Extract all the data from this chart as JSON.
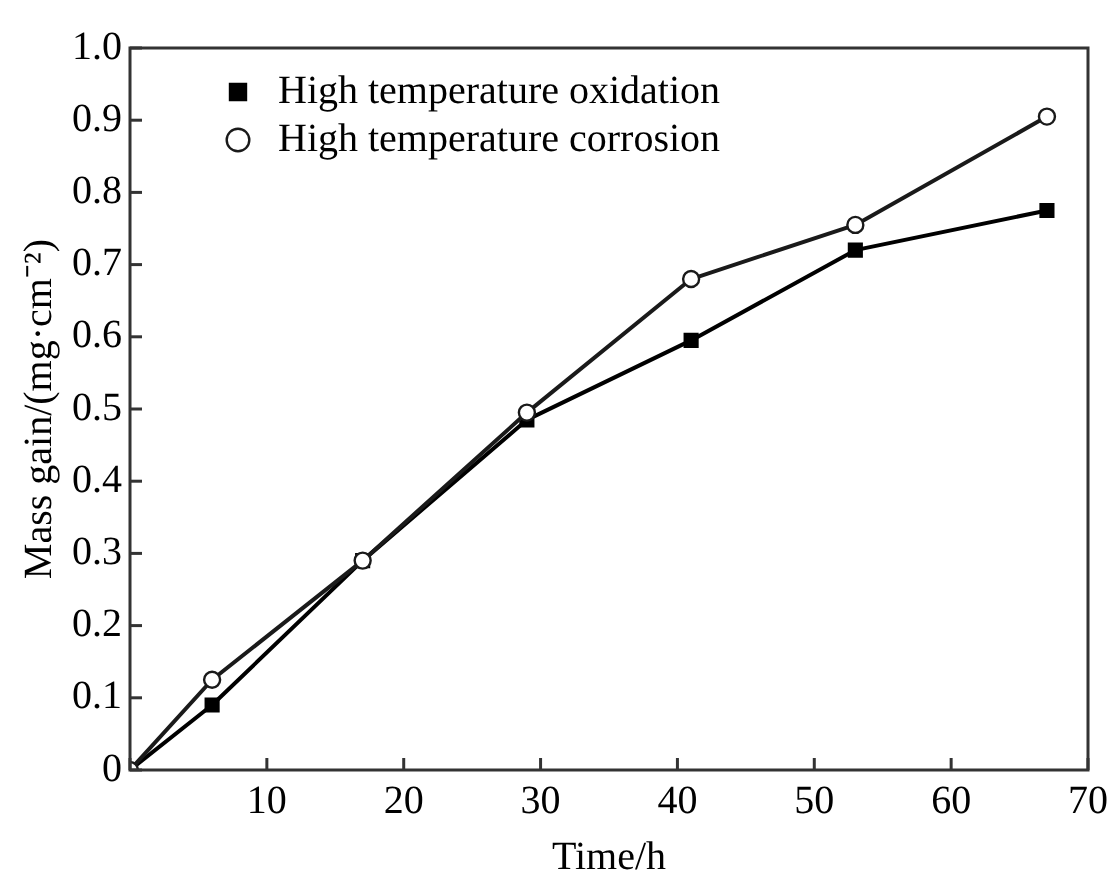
{
  "chart_data": {
    "type": "line",
    "xlabel": "Time/h",
    "ylabel": "Mass gain/(mg·cm⁻²)",
    "x": [
      0,
      6,
      17,
      29,
      41,
      53,
      67
    ],
    "series": [
      {
        "name": "High temperature oxidation",
        "color": "#000000",
        "marker": "square",
        "values": [
          0,
          0.09,
          0.29,
          0.485,
          0.595,
          0.72,
          0.775
        ]
      },
      {
        "name": "High temperature corrosion",
        "color": "#1a1a1a",
        "marker": "circle",
        "values": [
          0,
          0.125,
          0.29,
          0.495,
          0.68,
          0.755,
          0.905
        ]
      }
    ],
    "xlim": [
      0,
      70
    ],
    "xticks": [
      {
        "value": 0,
        "label": null
      },
      10,
      20,
      30,
      40,
      50,
      60,
      70
    ],
    "ylim": [
      0,
      1
    ],
    "yticks": [
      0,
      0.1,
      0.2,
      0.3,
      0.4,
      0.5,
      0.6,
      0.7,
      0.8,
      0.9,
      {
        "value": 1,
        "label": "1.0"
      }
    ],
    "grid": false,
    "legend": "top left",
    "line_style": "solid"
  }
}
